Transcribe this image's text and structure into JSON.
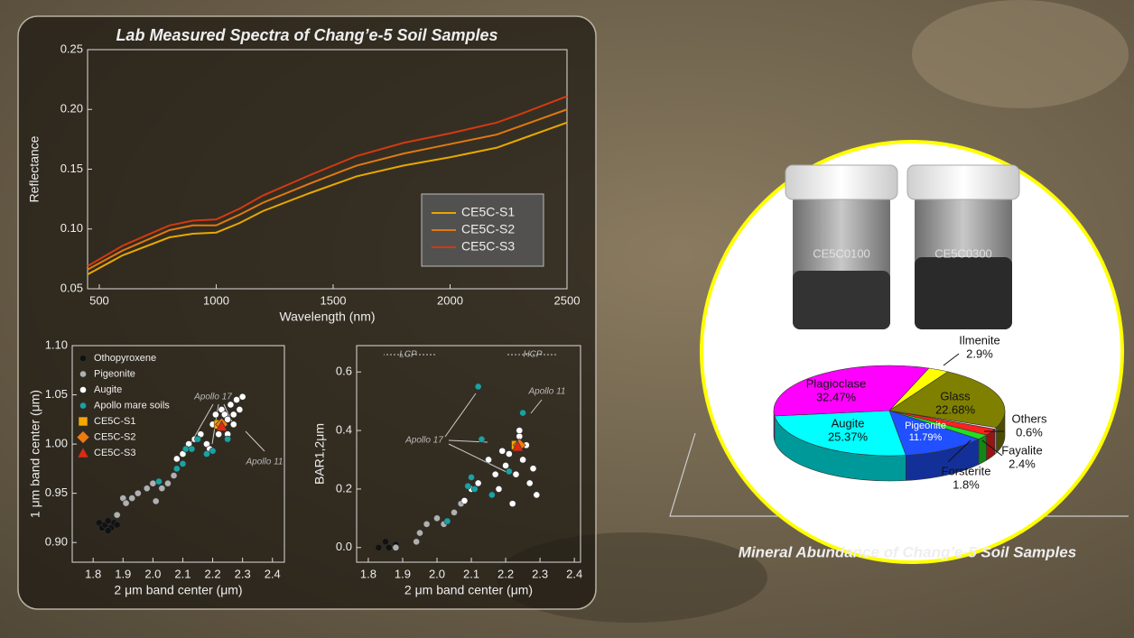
{
  "chart_data": [
    {
      "type": "line",
      "title": "Lab Measured Spectra of Chang’e-5 Soil Samples",
      "x_label": "Wavelength (nm)",
      "y_label": "Reflectance",
      "x": [
        450,
        600,
        800,
        900,
        1000,
        1100,
        1200,
        1400,
        1600,
        1800,
        2000,
        2200,
        2300,
        2500
      ],
      "series": [
        {
          "name": "CE5C-S1",
          "color": "#e8a800",
          "values": [
            0.062,
            0.078,
            0.093,
            0.096,
            0.097,
            0.105,
            0.115,
            0.13,
            0.144,
            0.153,
            0.16,
            0.168,
            0.175,
            0.189
          ]
        },
        {
          "name": "CE5C-S2",
          "color": "#e07a10",
          "values": [
            0.066,
            0.082,
            0.099,
            0.103,
            0.103,
            0.112,
            0.122,
            0.138,
            0.153,
            0.163,
            0.171,
            0.179,
            0.186,
            0.2
          ]
        },
        {
          "name": "CE5C-S3",
          "color": "#d23a10",
          "values": [
            0.069,
            0.086,
            0.103,
            0.107,
            0.108,
            0.117,
            0.128,
            0.145,
            0.161,
            0.172,
            0.18,
            0.189,
            0.196,
            0.211
          ]
        }
      ],
      "xlim": [
        450,
        2500
      ],
      "xticks": [
        500,
        1000,
        1500,
        2000,
        2500
      ],
      "ylim": [
        0.05,
        0.25
      ],
      "yticks": [
        0.05,
        {
          "value": 0.1,
          "label": "0.10"
        },
        0.15,
        {
          "value": 0.2,
          "label": "0.20"
        },
        0.25
      ],
      "legend": "lower right"
    },
    {
      "type": "scatter",
      "x_label": "2 μm band center (μm)",
      "y_label": "1 μm band center (μm)",
      "series": [
        {
          "name": "Othopyroxene",
          "color": "#111111",
          "marker": "circle",
          "x": [
            1.82,
            1.83,
            1.84,
            1.85,
            1.86,
            1.87,
            1.88,
            1.85
          ],
          "values": [
            0.92,
            0.915,
            0.918,
            0.922,
            0.915,
            0.92,
            0.918,
            0.912
          ]
        },
        {
          "name": "Pigeonite",
          "color": "#b0b0b0",
          "marker": "circle",
          "x": [
            1.88,
            1.9,
            1.91,
            1.93,
            1.95,
            1.98,
            2.0,
            2.01,
            2.03,
            2.05,
            2.07
          ],
          "values": [
            0.928,
            0.945,
            0.94,
            0.945,
            0.95,
            0.955,
            0.96,
            0.942,
            0.955,
            0.96,
            0.968
          ]
        },
        {
          "name": "Augite",
          "color": "#ffffff",
          "marker": "circle",
          "x": [
            2.08,
            2.1,
            2.12,
            2.14,
            2.16,
            2.18,
            2.2,
            2.21,
            2.22,
            2.23,
            2.24,
            2.25,
            2.26,
            2.27,
            2.28,
            2.29,
            2.3,
            2.25,
            2.27,
            2.19
          ],
          "values": [
            0.985,
            0.99,
            1.0,
            1.005,
            1.01,
            1.0,
            1.02,
            1.03,
            1.01,
            1.035,
            1.03,
            1.025,
            1.04,
            1.02,
            1.045,
            1.035,
            1.048,
            1.01,
            1.03,
            0.995
          ]
        },
        {
          "name": "Apollo mare soils",
          "color": "#17a3a3",
          "marker": "circle",
          "x": [
            2.02,
            2.08,
            2.1,
            2.11,
            2.13,
            2.15,
            2.18,
            2.2,
            2.25
          ],
          "values": [
            0.962,
            0.975,
            0.98,
            0.995,
            0.995,
            1.005,
            0.99,
            0.993,
            1.005
          ]
        },
        {
          "name": "CE5C-S1",
          "color": "#f5a800",
          "marker": "square",
          "x": [
            2.22
          ],
          "values": [
            1.02
          ]
        },
        {
          "name": "CE5C-S2",
          "color": "#f07a10",
          "marker": "diamond",
          "x": [
            2.23
          ],
          "values": [
            1.02
          ]
        },
        {
          "name": "CE5C-S3",
          "color": "#e02a10",
          "marker": "triangle",
          "x": [
            2.23
          ],
          "values": [
            1.018
          ]
        }
      ],
      "annotations": [
        "Apollo 17",
        "Apollo 11"
      ],
      "xlim": [
        1.73,
        2.44
      ],
      "xticks": [
        1.8,
        1.9,
        {
          "value": 2,
          "label": "2.0"
        },
        2.1,
        2.2,
        2.3,
        2.4
      ],
      "ylim": [
        0.88,
        1.1
      ],
      "yticks": [
        {
          "value": 0.9,
          "label": "0.90"
        },
        0.95,
        {
          "value": 1,
          "label": "1.00"
        },
        1.05,
        {
          "value": 1.1,
          "label": "1.10"
        }
      ],
      "legend": "upper left"
    },
    {
      "type": "scatter",
      "x_label": "2 μm band center (μm)",
      "y_label": "BAR1,2μm",
      "series": [
        {
          "color": "#111111",
          "marker": "circle",
          "x": [
            1.83,
            1.85,
            1.86,
            1.88
          ],
          "values": [
            0.0,
            0.02,
            0.0,
            0.01
          ]
        },
        {
          "color": "#b0b0b0",
          "marker": "circle",
          "x": [
            1.88,
            1.95,
            1.97,
            2.0,
            2.02,
            2.05,
            2.07,
            1.94
          ],
          "values": [
            0.0,
            0.05,
            0.08,
            0.1,
            0.08,
            0.12,
            0.15,
            0.02
          ]
        },
        {
          "color": "#ffffff",
          "marker": "circle",
          "x": [
            2.08,
            2.1,
            2.12,
            2.15,
            2.17,
            2.18,
            2.2,
            2.21,
            2.23,
            2.24,
            2.25,
            2.26,
            2.27,
            2.28,
            2.29,
            2.24,
            2.22,
            2.19
          ],
          "values": [
            0.16,
            0.2,
            0.22,
            0.3,
            0.25,
            0.2,
            0.28,
            0.32,
            0.25,
            0.38,
            0.3,
            0.35,
            0.22,
            0.27,
            0.18,
            0.4,
            0.15,
            0.33
          ]
        },
        {
          "color": "#17a3a3",
          "marker": "circle",
          "x": [
            2.03,
            2.09,
            2.1,
            2.11,
            2.13,
            2.12,
            2.21,
            2.25,
            2.16
          ],
          "values": [
            0.09,
            0.21,
            0.24,
            0.2,
            0.37,
            0.55,
            0.26,
            0.46,
            0.18
          ]
        },
        {
          "color": "#f5a800",
          "marker": "square",
          "x": [
            2.23
          ],
          "values": [
            0.35
          ]
        },
        {
          "color": "#f07a10",
          "marker": "diamond",
          "x": [
            2.24
          ],
          "values": [
            0.35
          ]
        },
        {
          "color": "#e02a10",
          "marker": "triangle",
          "x": [
            2.235
          ],
          "values": [
            0.345
          ]
        }
      ],
      "annotations": [
        "LCP",
        "HCP",
        "Apollo 17",
        "Apollo 11"
      ],
      "xlim": [
        1.766,
        2.418
      ],
      "xticks": [
        1.8,
        1.9,
        {
          "value": 2,
          "label": "2.0"
        },
        2.1,
        2.2,
        2.3,
        2.4
      ],
      "ylim": [
        -0.05,
        0.69
      ],
      "yticks": [
        {
          "value": 0,
          "label": "0.0"
        },
        0.2,
        0.4,
        0.6
      ]
    },
    {
      "type": "pie",
      "title": "Mineral Abundance of Chang’e-5 Soil Samples",
      "categories": [
        "Ilmenite",
        "Glass",
        "Others",
        "Fayalite",
        "Forsterite",
        "Pigeonite",
        "Augite",
        "Plagioclase"
      ],
      "values": [
        2.9,
        22.68,
        0.6,
        2.4,
        1.8,
        11.79,
        25.37,
        32.47
      ],
      "value_labels": [
        "2.9%",
        "22.68%",
        "0.6%",
        "2.4%",
        "1.8%",
        "11.79%",
        "25.37%",
        "32.47%"
      ],
      "colors": [
        "#ffff00",
        "#808000",
        "#e8e8e8",
        "#ff2020",
        "#20e020",
        "#2050ff",
        "#00ffff",
        "#ff00ff"
      ]
    }
  ],
  "photo": {
    "labels": [
      "CE5C0100",
      "CE5C0300"
    ]
  }
}
